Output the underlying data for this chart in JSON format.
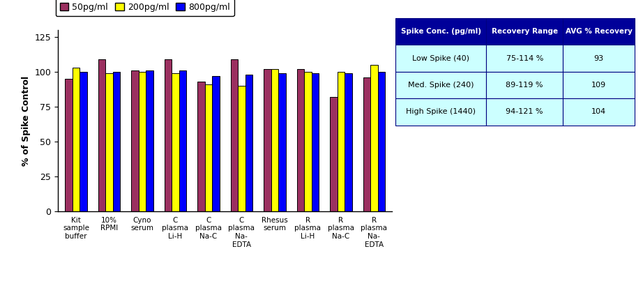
{
  "categories": [
    "Kit\nsample\nbuffer",
    "10%\nRPMI",
    "Cyno\nserum",
    "C\nplasma\nLi-H",
    "C\nplasma\nNa-C",
    "C\nplasma\nNa-\nEDTA",
    "Rhesus\nserum",
    "R\nplasma\nLi-H",
    "R\nplasma\nNa-C",
    "R\nplasma\nNa-\nEDTA"
  ],
  "series": {
    "50pg/ml": [
      95,
      109,
      101,
      109,
      93,
      109,
      102,
      102,
      82,
      96
    ],
    "200pg/ml": [
      103,
      99,
      100,
      99,
      91,
      90,
      102,
      100,
      100,
      105
    ],
    "800pg/ml": [
      100,
      100,
      101,
      101,
      97,
      98,
      99,
      99,
      99,
      100
    ]
  },
  "bar_colors": {
    "50pg/ml": "#9B3060",
    "200pg/ml": "#FFFF00",
    "800pg/ml": "#0000FF"
  },
  "legend_labels": [
    "50pg/ml",
    "200pg/ml",
    "800pg/ml"
  ],
  "ylabel": "% of Spike Control",
  "ylim": [
    0,
    130
  ],
  "yticks": [
    0,
    25,
    50,
    75,
    100,
    125
  ],
  "table_header": [
    "Spike Conc. (pg/ml)",
    "Recovery Range",
    "AVG % Recovery"
  ],
  "table_header_bg": "#000099",
  "table_header_fg": "#FFFFFF",
  "table_data": [
    [
      "Low Spike (40)",
      "75-114 %",
      "93"
    ],
    [
      "Med. Spike (240)",
      "89-119 %",
      "109"
    ],
    [
      "High Spike (1440)",
      "94-121 %",
      "104"
    ]
  ],
  "table_bg": "#CCFFFF",
  "table_border": "#000080",
  "bar_edgecolor": "#000000",
  "bar_width": 0.22,
  "figure_bg": "#FFFFFF"
}
